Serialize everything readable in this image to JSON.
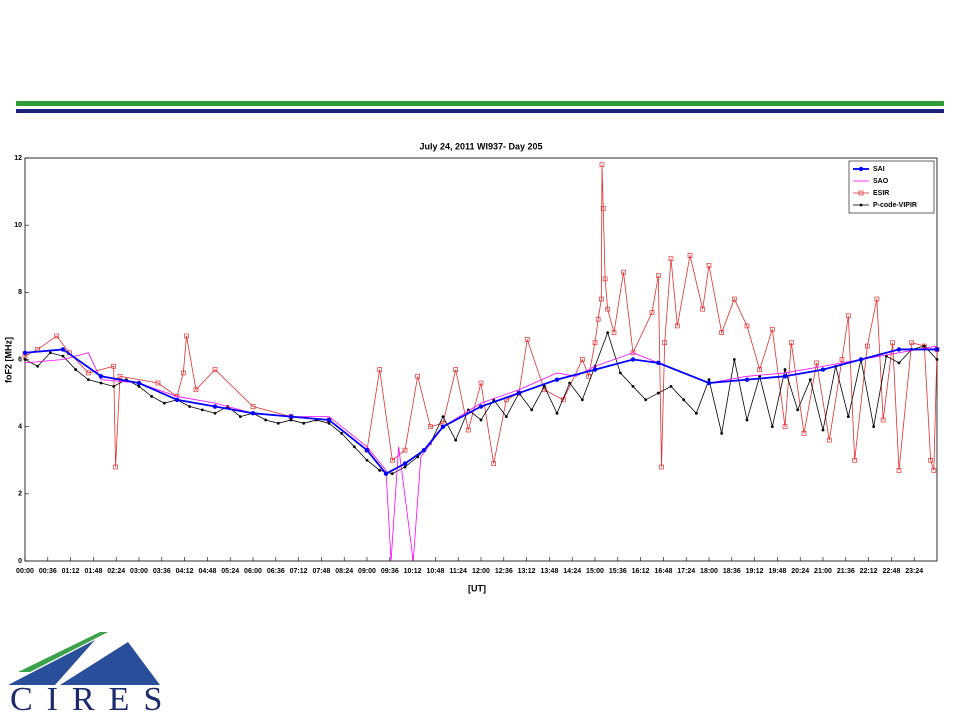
{
  "chart_data": {
    "type": "line",
    "title": "July 24, 2011 WI937- Day 205",
    "xlabel": "[UT]",
    "ylabel": "foF2 [MHz]",
    "xlim": [
      0,
      1440
    ],
    "ylim": [
      0,
      12
    ],
    "xticks": [
      {
        "value": 0,
        "label": "00:00"
      },
      {
        "value": 36,
        "label": "00:36"
      },
      {
        "value": 72,
        "label": "01:12"
      },
      {
        "value": 108,
        "label": "01:48"
      },
      {
        "value": 144,
        "label": "02:24"
      },
      {
        "value": 180,
        "label": "03:00"
      },
      {
        "value": 216,
        "label": "03:36"
      },
      {
        "value": 252,
        "label": "04:12"
      },
      {
        "value": 288,
        "label": "04:48"
      },
      {
        "value": 324,
        "label": "05:24"
      },
      {
        "value": 360,
        "label": "06:00"
      },
      {
        "value": 396,
        "label": "06:36"
      },
      {
        "value": 432,
        "label": "07:12"
      },
      {
        "value": 468,
        "label": "07:48"
      },
      {
        "value": 504,
        "label": "08:24"
      },
      {
        "value": 540,
        "label": "09:00"
      },
      {
        "value": 576,
        "label": "09:36"
      },
      {
        "value": 612,
        "label": "10:12"
      },
      {
        "value": 648,
        "label": "10:48"
      },
      {
        "value": 684,
        "label": "11:24"
      },
      {
        "value": 720,
        "label": "12:00"
      },
      {
        "value": 756,
        "label": "12:36"
      },
      {
        "value": 792,
        "label": "13:12"
      },
      {
        "value": 828,
        "label": "13:48"
      },
      {
        "value": 864,
        "label": "14:24"
      },
      {
        "value": 900,
        "label": "15:00"
      },
      {
        "value": 936,
        "label": "15:36"
      },
      {
        "value": 972,
        "label": "16:12"
      },
      {
        "value": 1008,
        "label": "16:48"
      },
      {
        "value": 1044,
        "label": "17:24"
      },
      {
        "value": 1080,
        "label": "18:00"
      },
      {
        "value": 1116,
        "label": "18:36"
      },
      {
        "value": 1152,
        "label": "19:12"
      },
      {
        "value": 1188,
        "label": "19:48"
      },
      {
        "value": 1224,
        "label": "20:24"
      },
      {
        "value": 1260,
        "label": "21:00"
      },
      {
        "value": 1296,
        "label": "21:36"
      },
      {
        "value": 1332,
        "label": "22:12"
      },
      {
        "value": 1368,
        "label": "22:48"
      },
      {
        "value": 1404,
        "label": "23:24"
      }
    ],
    "yticks": [
      0,
      2,
      4,
      6,
      8,
      10,
      12
    ],
    "legend": "upper right",
    "series": [
      {
        "name": "SAI",
        "color": "#0000ff",
        "marker": "circle",
        "x": [
          0,
          60,
          120,
          180,
          240,
          300,
          360,
          420,
          480,
          540,
          570,
          600,
          630,
          660,
          720,
          780,
          840,
          900,
          960,
          1000,
          1080,
          1140,
          1200,
          1260,
          1320,
          1380,
          1440
        ],
        "values": [
          6.2,
          6.3,
          5.5,
          5.3,
          4.8,
          4.6,
          4.4,
          4.3,
          4.2,
          3.3,
          2.6,
          2.9,
          3.3,
          4.0,
          4.6,
          5.0,
          5.4,
          5.7,
          6.0,
          5.9,
          5.3,
          5.4,
          5.5,
          5.7,
          6.0,
          6.3,
          6.3
        ]
      },
      {
        "name": "SAO",
        "color": "#ff00ff",
        "marker": "none",
        "x": [
          0,
          60,
          100,
          120,
          180,
          240,
          300,
          360,
          420,
          480,
          540,
          570,
          578,
          590,
          613,
          625,
          660,
          720,
          780,
          840,
          870,
          900,
          960,
          1000,
          1080,
          1140,
          1200,
          1260,
          1320,
          1380,
          1440
        ],
        "values": [
          5.9,
          6.0,
          6.2,
          5.4,
          5.3,
          4.9,
          4.7,
          4.4,
          4.3,
          4.3,
          3.4,
          2.7,
          0,
          3.4,
          0,
          3.1,
          4.0,
          4.7,
          5.1,
          5.6,
          5.5,
          5.8,
          6.2,
          5.9,
          5.3,
          5.5,
          5.6,
          5.8,
          6.0,
          6.2,
          6.4
        ]
      },
      {
        "name": "ESIR",
        "color": "#e03030",
        "marker": "square",
        "x": [
          0,
          20,
          50,
          70,
          100,
          140,
          143,
          150,
          210,
          240,
          250,
          255,
          270,
          300,
          360,
          420,
          480,
          540,
          560,
          580,
          600,
          620,
          640,
          660,
          680,
          700,
          720,
          740,
          760,
          780,
          793,
          820,
          850,
          880,
          890,
          900,
          905,
          910,
          911,
          913,
          916,
          920,
          930,
          945,
          960,
          990,
          1000,
          1005,
          1010,
          1020,
          1030,
          1050,
          1070,
          1080,
          1100,
          1120,
          1140,
          1160,
          1180,
          1200,
          1210,
          1230,
          1250,
          1270,
          1290,
          1300,
          1310,
          1330,
          1345,
          1355,
          1370,
          1380,
          1400,
          1420,
          1430,
          1435,
          1440
        ],
        "values": [
          6.1,
          6.3,
          6.7,
          6.2,
          5.6,
          5.8,
          2.8,
          5.5,
          5.3,
          4.9,
          5.6,
          6.7,
          5.1,
          5.7,
          4.6,
          4.3,
          4.2,
          3.3,
          5.7,
          3.0,
          3.3,
          5.5,
          4.0,
          4.1,
          5.7,
          3.9,
          5.3,
          2.9,
          4.8,
          5.0,
          6.6,
          5.1,
          4.8,
          6.0,
          5.5,
          6.5,
          7.2,
          7.8,
          11.8,
          10.5,
          8.4,
          7.5,
          6.8,
          8.6,
          6.2,
          7.4,
          8.5,
          2.8,
          6.5,
          9.0,
          7.0,
          9.1,
          7.5,
          8.8,
          6.8,
          7.8,
          7.0,
          5.7,
          6.9,
          4.0,
          6.5,
          3.8,
          5.9,
          3.6,
          6.0,
          7.3,
          3.0,
          6.4,
          7.8,
          4.2,
          6.5,
          2.7,
          6.5,
          6.4,
          3.0,
          2.7,
          6.3
        ]
      },
      {
        "name": "P-code-VIPIR",
        "color": "#000000",
        "marker": "dot",
        "x": [
          0,
          20,
          40,
          60,
          80,
          100,
          120,
          140,
          160,
          180,
          200,
          220,
          240,
          260,
          280,
          300,
          320,
          340,
          360,
          380,
          400,
          420,
          440,
          460,
          480,
          500,
          520,
          540,
          560,
          580,
          600,
          620,
          640,
          660,
          680,
          700,
          720,
          740,
          760,
          780,
          800,
          820,
          840,
          860,
          880,
          900,
          920,
          940,
          960,
          980,
          1000,
          1020,
          1040,
          1060,
          1080,
          1100,
          1120,
          1140,
          1160,
          1180,
          1200,
          1220,
          1240,
          1260,
          1280,
          1300,
          1320,
          1340,
          1360,
          1380,
          1400,
          1420,
          1440
        ],
        "values": [
          6.0,
          5.8,
          6.2,
          6.1,
          5.7,
          5.4,
          5.3,
          5.2,
          5.4,
          5.2,
          4.9,
          4.7,
          4.8,
          4.6,
          4.5,
          4.4,
          4.6,
          4.3,
          4.4,
          4.2,
          4.1,
          4.2,
          4.1,
          4.2,
          4.1,
          3.8,
          3.4,
          3.0,
          2.7,
          2.6,
          2.8,
          3.1,
          3.5,
          4.3,
          3.6,
          4.5,
          4.2,
          4.8,
          4.3,
          5.0,
          4.5,
          5.2,
          4.4,
          5.3,
          4.8,
          5.8,
          6.8,
          5.6,
          5.2,
          4.8,
          5.0,
          5.2,
          4.8,
          4.4,
          5.4,
          3.8,
          6.0,
          4.2,
          5.5,
          4.0,
          5.7,
          4.5,
          5.4,
          3.9,
          5.8,
          4.3,
          6.0,
          4.0,
          6.1,
          5.9,
          6.3,
          6.4,
          6.0
        ]
      }
    ]
  },
  "logo": {
    "text": "CIRES"
  }
}
